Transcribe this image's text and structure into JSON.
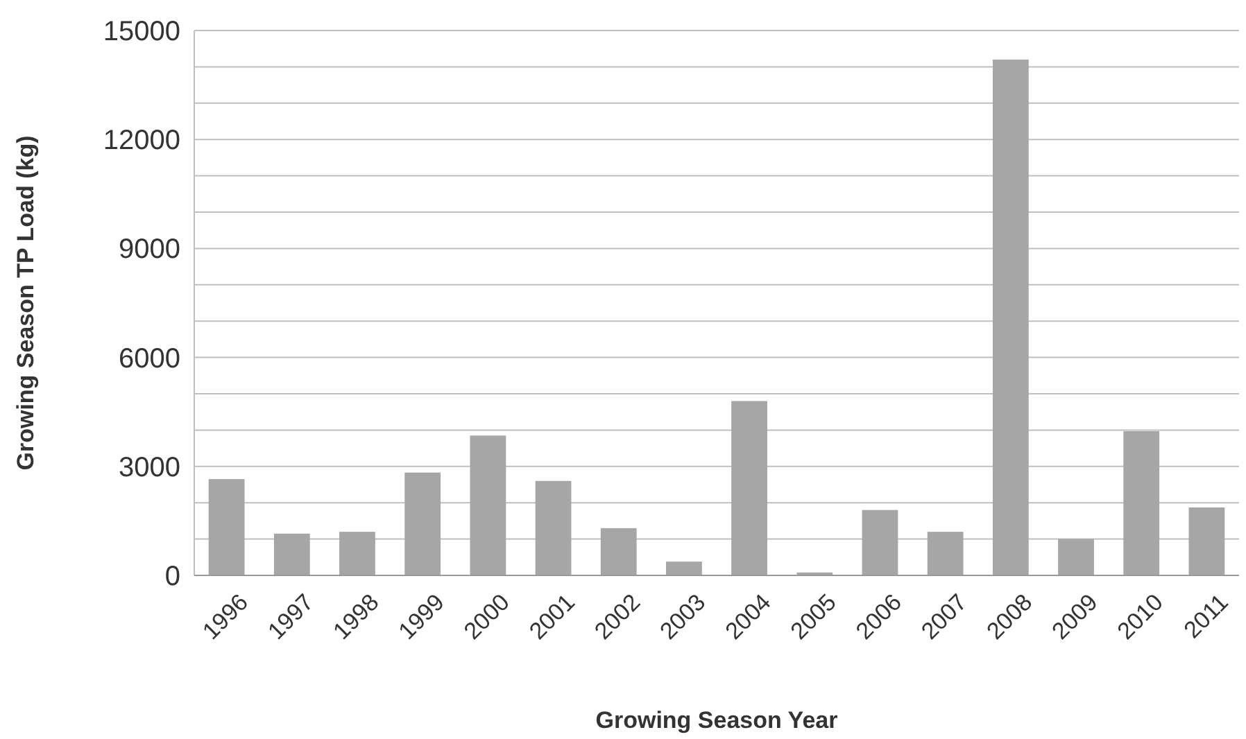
{
  "chart_data": {
    "type": "bar",
    "xlabel": "Growing Season Year",
    "ylabel": "Growing Season TP Load (kg)",
    "categories": [
      "1996",
      "1997",
      "1998",
      "1999",
      "2000",
      "2001",
      "2002",
      "2003",
      "2004",
      "2005",
      "2006",
      "2007",
      "2008",
      "2009",
      "2010",
      "2011"
    ],
    "values": [
      2650,
      1150,
      1200,
      2830,
      3850,
      2600,
      1300,
      380,
      4800,
      80,
      1800,
      1200,
      14200,
      1000,
      3970,
      1870
    ],
    "color": "#a6a6a6",
    "ylim": [
      0,
      15000
    ],
    "yticks": [
      0,
      {
        "value": 1000,
        "label": null
      },
      {
        "value": 2000,
        "label": null
      },
      3000,
      {
        "value": 4000,
        "label": null
      },
      {
        "value": 5000,
        "label": null
      },
      6000,
      {
        "value": 7000,
        "label": null
      },
      {
        "value": 8000,
        "label": null
      },
      9000,
      {
        "value": 10000,
        "label": null
      },
      {
        "value": 11000,
        "label": null
      },
      12000,
      {
        "value": 13000,
        "label": null
      },
      {
        "value": 14000,
        "label": null
      },
      15000
    ],
    "grid": "y"
  }
}
